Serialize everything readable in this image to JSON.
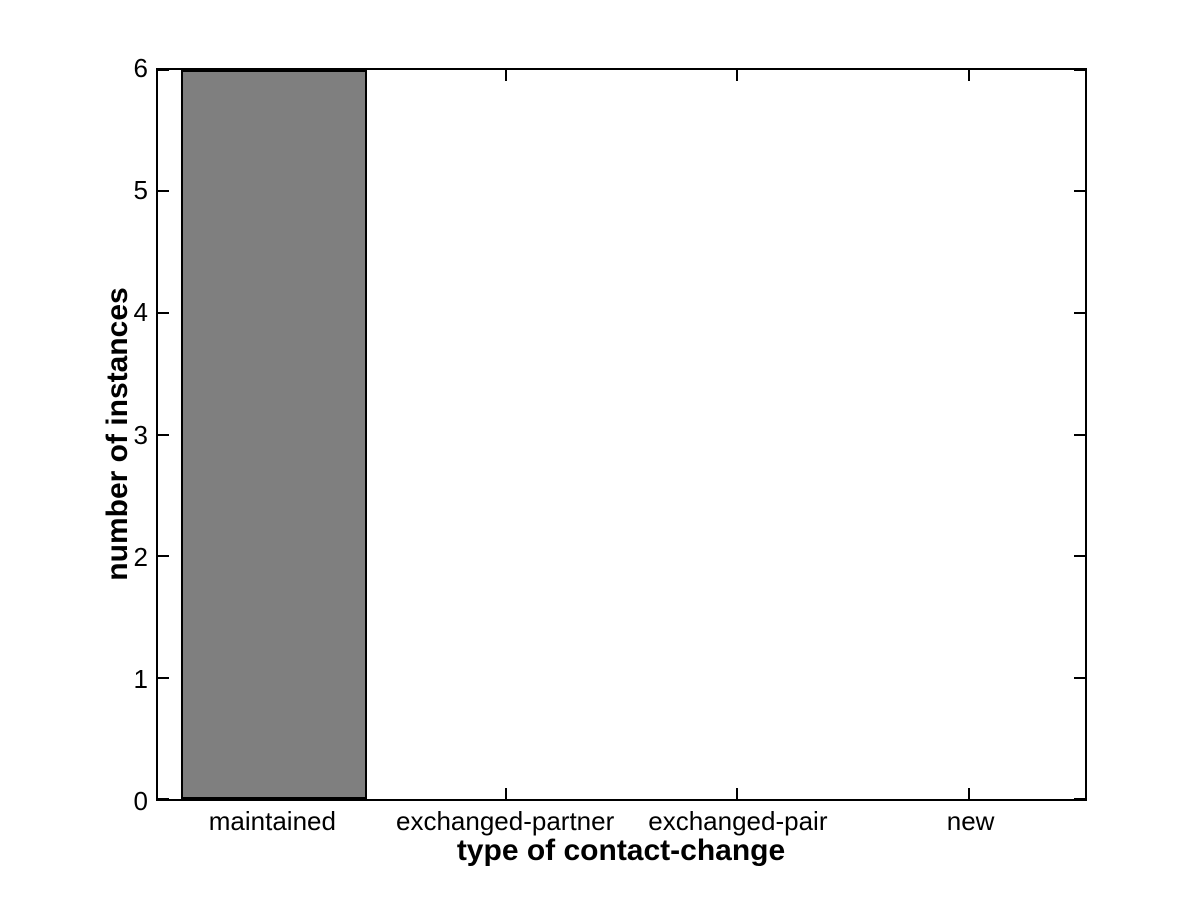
{
  "chart_data": {
    "type": "bar",
    "categories": [
      "maintained",
      "exchanged-partner",
      "exchanged-pair",
      "new"
    ],
    "values": [
      6,
      0,
      0,
      0
    ],
    "title": "",
    "xlabel": "type of contact-change",
    "ylabel": "number of instances",
    "ylim": [
      0,
      6
    ],
    "yticks": [
      0,
      1,
      2,
      3,
      4,
      5,
      6
    ],
    "bar_width_fraction": 0.8,
    "bar_color": "#7f7f7f",
    "bar_edge_color": "#000000",
    "axis_color": "#000000",
    "background_color": "#ffffff",
    "grid": "off",
    "legend": "none",
    "tick_direction": "in",
    "box": "on"
  }
}
